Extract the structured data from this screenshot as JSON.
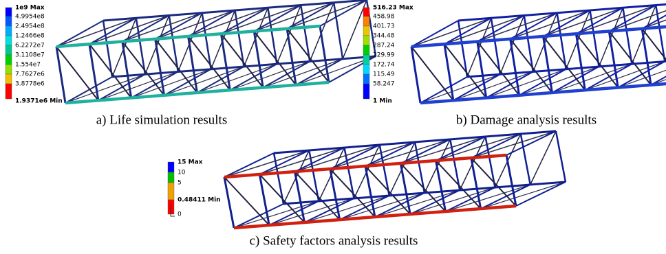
{
  "panels": [
    {
      "legend": {
        "labels": [
          "1e9 Max",
          "4.9954e8",
          "2.4954e8",
          "1.2466e8",
          "6.2272e7",
          "3.1108e7",
          "1.554e7",
          "7.7627e6",
          "3.8778e6",
          "1.9371e6 Min"
        ],
        "colors": [
          "#0000ff",
          "#0058ff",
          "#00aaff",
          "#00e0e0",
          "#00c890",
          "#00d000",
          "#90e000",
          "#f0c000",
          "#ff0000"
        ]
      },
      "caption": "a) Life simulation results"
    },
    {
      "legend": {
        "labels": [
          "516.23 Max",
          "458.98",
          "401.73",
          "344.48",
          "287.24",
          "229.99",
          "172.74",
          "115.49",
          "58.247",
          "1 Min"
        ],
        "colors": [
          "#ff0000",
          "#ff7f00",
          "#e6c800",
          "#a0e000",
          "#00d000",
          "#00d0a0",
          "#00d8ff",
          "#0070ff",
          "#0000ff"
        ]
      },
      "caption": "b) Damage analysis results"
    },
    {
      "legend": {
        "labels": [
          "15 Max",
          "10",
          "5",
          "0.48411 Min",
          "0"
        ],
        "colors": [
          "#0000ff",
          "#00c000",
          "#f0a000",
          "#ff0000"
        ]
      },
      "caption": "c) Safety factors analysis results"
    }
  ]
}
